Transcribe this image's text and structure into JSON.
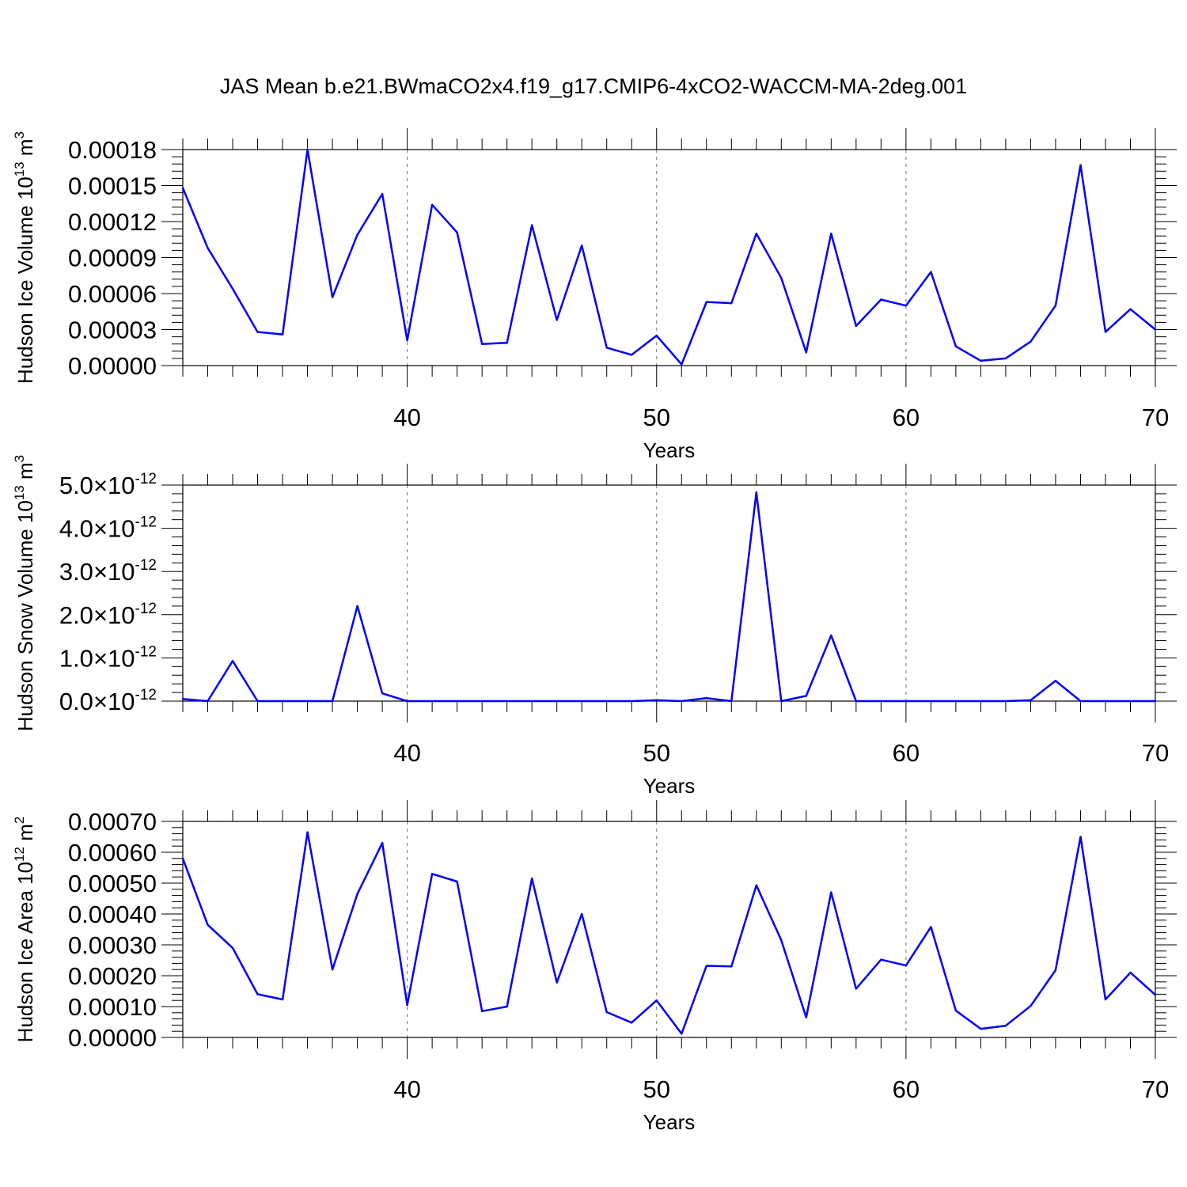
{
  "chart_data": {
    "type": "line",
    "title": "JAS Mean b.e21.BWmaCO2x4.f19_g17.CMIP6-4xCO2-WACCM-MA-2deg.001",
    "line_color": "#0000ff",
    "x": [
      31,
      32,
      33,
      34,
      35,
      36,
      37,
      38,
      39,
      40,
      41,
      42,
      43,
      44,
      45,
      46,
      47,
      48,
      49,
      50,
      51,
      52,
      53,
      54,
      55,
      56,
      57,
      58,
      59,
      60,
      61,
      62,
      63,
      64,
      65,
      66,
      67,
      68,
      69,
      70
    ],
    "xlim": [
      31,
      70
    ],
    "panels": [
      {
        "ylabel": "Hudson Ice Volume 10",
        "ylabel_sup": "13",
        "ylabel_unit": " m",
        "ylabel_unit_sup": "3",
        "xlabel": "Years",
        "ylim": [
          0,
          0.00018
        ],
        "yticks": [
          0,
          3e-05,
          6e-05,
          9e-05,
          0.00012,
          0.00015,
          0.00018
        ],
        "ytick_labels": [
          "0.00000",
          "0.00003",
          "0.00006",
          "0.00009",
          "0.00012",
          "0.00015",
          "0.00018"
        ],
        "xticks": [
          40,
          50,
          60,
          70
        ],
        "xtick_labels": [
          "40",
          "50",
          "60",
          "70"
        ],
        "values": [
          0.000148,
          9.8e-05,
          6.4e-05,
          2.8e-05,
          2.6e-05,
          0.00018,
          5.7e-05,
          0.000109,
          0.000143,
          2.1e-05,
          0.000134,
          0.000111,
          1.8e-05,
          1.9e-05,
          0.000117,
          3.8e-05,
          0.0001,
          1.5e-05,
          9e-06,
          2.5e-05,
          1e-06,
          5.3e-05,
          5.2e-05,
          0.00011,
          7.3e-05,
          1.1e-05,
          0.00011,
          3.3e-05,
          5.5e-05,
          5e-05,
          7.8e-05,
          1.6e-05,
          4e-06,
          6e-06,
          2e-05,
          5e-05,
          0.000167,
          2.8e-05,
          4.7e-05,
          3e-05
        ]
      },
      {
        "ylabel": "Hudson Snow Volume 10",
        "ylabel_sup": "13",
        "ylabel_unit": " m",
        "ylabel_unit_sup": "3",
        "xlabel": "Years",
        "ylim": [
          0,
          5.0
        ],
        "yticks": [
          0,
          1.0,
          2.0,
          3.0,
          4.0,
          5.0
        ],
        "ytick_labels": [
          "0.0",
          "1.0",
          "2.0",
          "3.0",
          "4.0",
          "5.0"
        ],
        "ytick_times": "×10",
        "ytick_exponent": "-12",
        "xticks": [
          40,
          50,
          60,
          70
        ],
        "xtick_labels": [
          "40",
          "50",
          "60",
          "70"
        ],
        "values": [
          0.05,
          0.0,
          0.93,
          0.0,
          0.0,
          0.0,
          0.0,
          2.2,
          0.18,
          0.0,
          0.0,
          0.0,
          0.0,
          0.0,
          0.0,
          0.0,
          0.0,
          0.0,
          0.0,
          0.02,
          0.0,
          0.07,
          0.0,
          4.83,
          0.0,
          0.12,
          1.52,
          0.0,
          0.0,
          0.0,
          0.0,
          0.0,
          0.0,
          0.0,
          0.02,
          0.47,
          0.0,
          0.0,
          0.0,
          0.0
        ]
      },
      {
        "ylabel": "Hudson Ice Area 10",
        "ylabel_sup": "12",
        "ylabel_unit": " m",
        "ylabel_unit_sup": "2",
        "xlabel": "Years",
        "ylim": [
          0,
          0.0007
        ],
        "yticks": [
          0,
          0.0001,
          0.0002,
          0.0003,
          0.0004,
          0.0005,
          0.0006,
          0.0007
        ],
        "ytick_labels": [
          "0.00000",
          "0.00010",
          "0.00020",
          "0.00030",
          "0.00040",
          "0.00050",
          "0.00060",
          "0.00070"
        ],
        "xticks": [
          40,
          50,
          60,
          70
        ],
        "xtick_labels": [
          "40",
          "50",
          "60",
          "70"
        ],
        "values": [
          0.00058,
          0.000365,
          0.00029,
          0.00014,
          0.000123,
          0.000665,
          0.00022,
          0.000465,
          0.00063,
          0.000105,
          0.00053,
          0.000505,
          8.5e-05,
          0.0001,
          0.000515,
          0.000178,
          0.0004,
          8.2e-05,
          4.8e-05,
          0.00012,
          1.2e-05,
          0.000232,
          0.00023,
          0.000493,
          0.000315,
          6.5e-05,
          0.00047,
          0.000158,
          0.000252,
          0.000233,
          0.000358,
          8.7e-05,
          2.8e-05,
          3.8e-05,
          0.000102,
          0.000218,
          0.00065,
          0.000123,
          0.00021,
          0.000138
        ]
      }
    ]
  }
}
